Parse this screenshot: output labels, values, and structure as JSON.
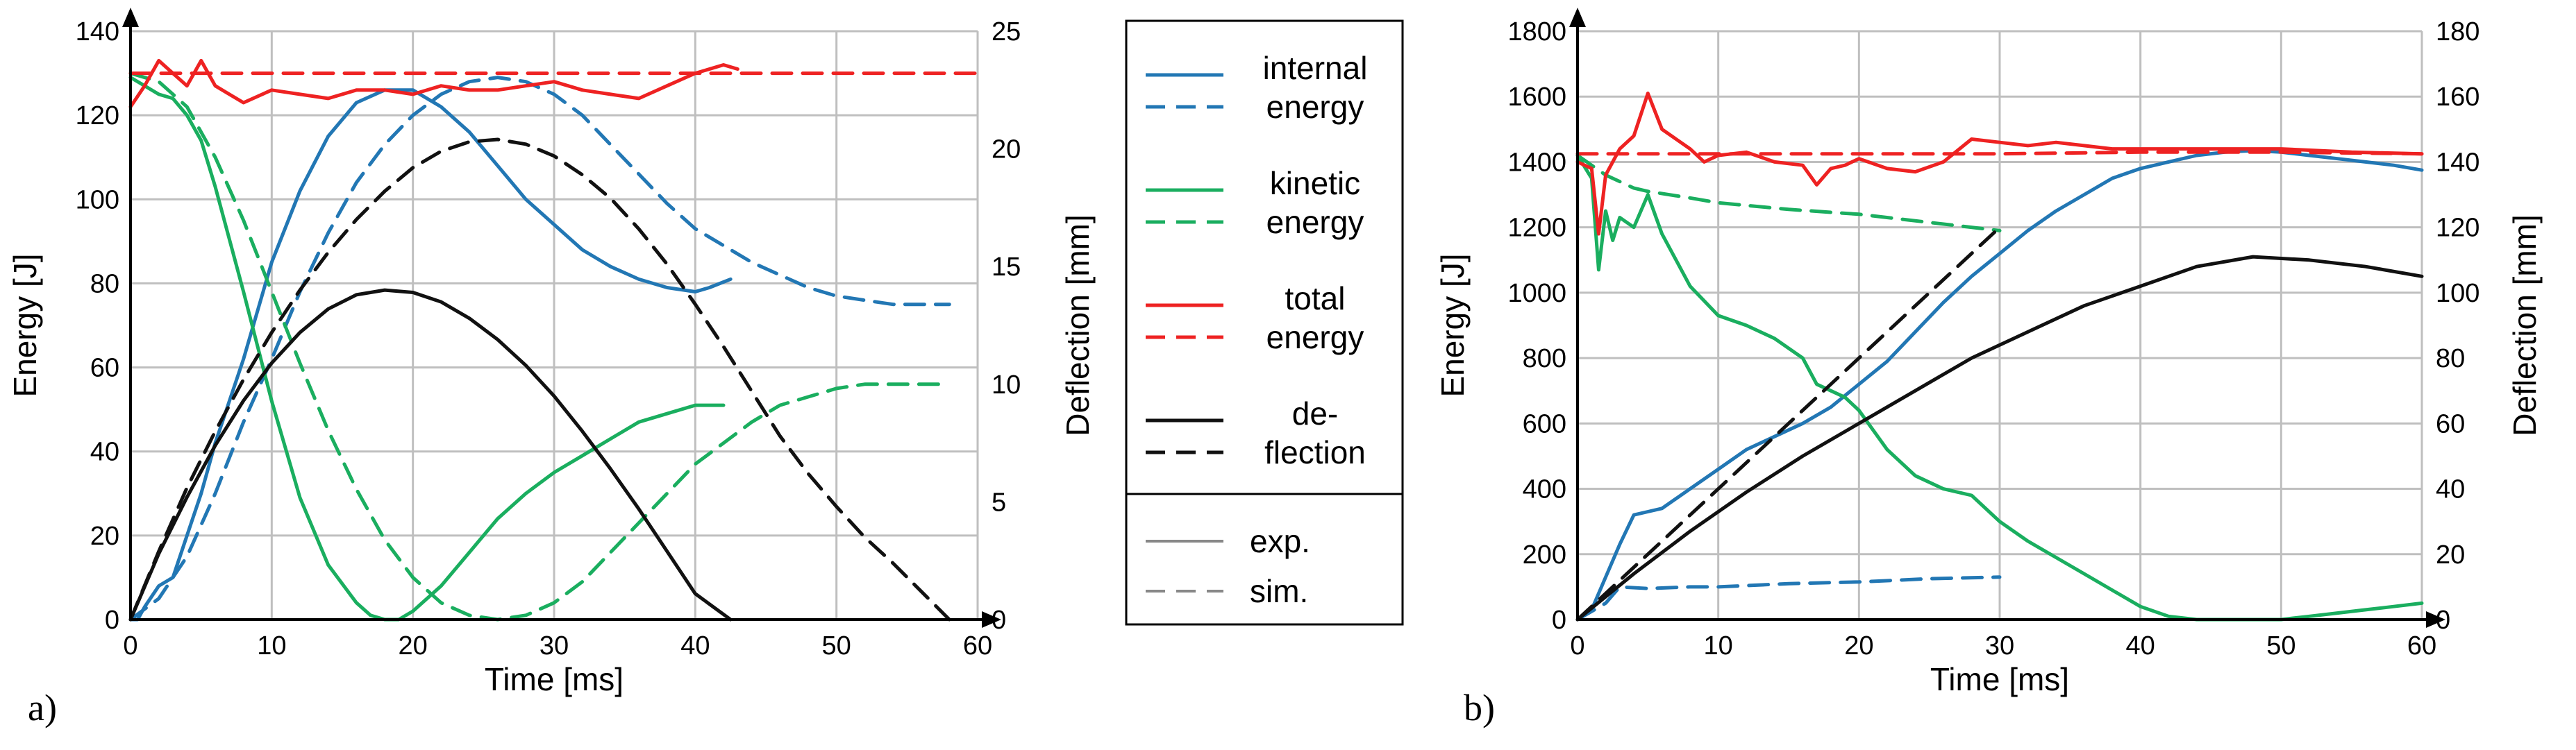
{
  "chart_data": [
    {
      "type": "line",
      "panel_label": "a)",
      "xlabel": "Time [ms]",
      "ylabel": "Energy [J]",
      "y2label": "Deflection [mm]",
      "xlim": [
        0,
        60
      ],
      "ylim": [
        0,
        140
      ],
      "y2lim": [
        0,
        25
      ],
      "xticks": [
        0,
        10,
        20,
        30,
        40,
        50,
        60
      ],
      "yticks": [
        0,
        20,
        40,
        60,
        80,
        100,
        120,
        140
      ],
      "y2ticks": [
        0,
        5,
        10,
        15,
        20,
        25
      ],
      "grid": true,
      "series": [
        {
          "key": "internal_exp",
          "color": "#2277B4",
          "dash": false,
          "axis": "left",
          "x": [
            0,
            0.5,
            1,
            2,
            3,
            4,
            5,
            6,
            8,
            10,
            12,
            14,
            16,
            18,
            20,
            22,
            24,
            26,
            28,
            30,
            32,
            34,
            36,
            38,
            40,
            41,
            42.5
          ],
          "y": [
            0,
            0,
            3,
            8,
            10,
            20,
            30,
            42,
            62,
            85,
            102,
            115,
            123,
            126,
            126,
            122,
            116,
            108,
            100,
            94,
            88,
            84,
            81,
            79,
            78,
            79,
            81
          ]
        },
        {
          "key": "internal_sim",
          "color": "#2277B4",
          "dash": true,
          "axis": "left",
          "x": [
            0,
            2,
            4,
            6,
            8,
            10,
            12,
            14,
            16,
            18,
            20,
            22,
            24,
            26,
            28,
            30,
            32,
            34,
            36,
            38,
            40,
            42,
            44,
            46,
            48,
            50,
            52,
            54,
            56,
            58
          ],
          "y": [
            0,
            5,
            15,
            30,
            47,
            62,
            78,
            92,
            104,
            113,
            120,
            125,
            128,
            129,
            128,
            125,
            120,
            113,
            106,
            99,
            93,
            89,
            85,
            82,
            79,
            77,
            76,
            75,
            75,
            75
          ]
        },
        {
          "key": "kinetic_exp",
          "color": "#1AAE5F",
          "dash": false,
          "axis": "left",
          "x": [
            0,
            1,
            2,
            3,
            4,
            5,
            6,
            8,
            10,
            12,
            14,
            16,
            17,
            18,
            19,
            20,
            22,
            24,
            26,
            28,
            30,
            32,
            34,
            36,
            38,
            40,
            42
          ],
          "y": [
            129,
            127,
            125,
            124,
            120,
            114,
            103,
            78,
            52,
            29,
            13,
            4,
            1,
            0,
            0,
            2,
            8,
            16,
            24,
            30,
            35,
            39,
            43,
            47,
            49,
            51,
            51
          ]
        },
        {
          "key": "kinetic_sim",
          "color": "#1AAE5F",
          "dash": true,
          "axis": "left",
          "x": [
            0,
            2,
            4,
            6,
            8,
            10,
            12,
            14,
            16,
            18,
            20,
            22,
            24,
            26,
            28,
            30,
            32,
            34,
            36,
            38,
            40,
            42,
            44,
            46,
            48,
            50,
            52,
            54,
            56,
            58
          ],
          "y": [
            130,
            128,
            122,
            110,
            95,
            78,
            61,
            45,
            31,
            19,
            10,
            4,
            1,
            0,
            1,
            4,
            9,
            16,
            23,
            30,
            37,
            42,
            47,
            51,
            53,
            55,
            56,
            56,
            56,
            56
          ]
        },
        {
          "key": "total_exp",
          "color": "#EE2222",
          "dash": false,
          "axis": "left",
          "x": [
            0,
            1,
            2,
            3,
            4,
            5,
            6,
            7,
            8,
            10,
            12,
            14,
            16,
            18,
            20,
            22,
            24,
            26,
            28,
            30,
            32,
            34,
            36,
            38,
            40,
            42,
            43
          ],
          "y": [
            122,
            127,
            133,
            130,
            127,
            133,
            127,
            125,
            123,
            126,
            125,
            124,
            126,
            126,
            125,
            127,
            126,
            126,
            127,
            128,
            126,
            125,
            124,
            127,
            130,
            132,
            131
          ]
        },
        {
          "key": "total_sim",
          "color": "#EE2222",
          "dash": true,
          "axis": "left",
          "x": [
            0,
            1,
            2,
            5,
            10,
            20,
            30,
            40,
            50,
            60
          ],
          "y": [
            130,
            130,
            130,
            130,
            130,
            130,
            130,
            130,
            130,
            130
          ]
        },
        {
          "key": "deflection_exp",
          "color": "#111111",
          "dash": false,
          "axis": "right",
          "x": [
            0,
            2,
            4,
            6,
            8,
            10,
            12,
            14,
            16,
            18,
            20,
            22,
            24,
            26,
            28,
            30,
            32,
            34,
            36,
            38,
            40,
            42.5
          ],
          "y": [
            0,
            2.8,
            5.2,
            7.4,
            9.3,
            10.9,
            12.2,
            13.2,
            13.8,
            14.0,
            13.9,
            13.5,
            12.8,
            11.9,
            10.8,
            9.5,
            8.0,
            6.4,
            4.7,
            2.9,
            1.1,
            0
          ]
        },
        {
          "key": "deflection_sim",
          "color": "#111111",
          "dash": true,
          "axis": "right",
          "x": [
            0,
            2,
            4,
            6,
            8,
            10,
            12,
            14,
            16,
            18,
            20,
            22,
            24,
            26,
            28,
            30,
            32,
            34,
            36,
            38,
            40,
            42,
            44,
            46,
            48,
            50,
            52,
            54,
            56,
            58
          ],
          "y": [
            0,
            2.9,
            5.6,
            8.0,
            10.2,
            12.2,
            14.0,
            15.6,
            17.0,
            18.2,
            19.2,
            19.9,
            20.3,
            20.4,
            20.2,
            19.7,
            18.9,
            17.9,
            16.6,
            15.1,
            13.4,
            11.6,
            9.7,
            7.8,
            6.2,
            4.8,
            3.5,
            2.4,
            1.2,
            0
          ]
        }
      ]
    },
    {
      "type": "line",
      "panel_label": "b)",
      "xlabel": "Time [ms]",
      "ylabel": "Energy [J]",
      "y2label": "Deflection [mm]",
      "xlim": [
        0,
        60
      ],
      "ylim": [
        0,
        1800
      ],
      "y2lim": [
        0,
        180
      ],
      "xticks": [
        0,
        10,
        20,
        30,
        40,
        50,
        60
      ],
      "yticks": [
        0,
        200,
        400,
        600,
        800,
        1000,
        1200,
        1400,
        1600,
        1800
      ],
      "y2ticks": [
        0,
        20,
        40,
        60,
        80,
        100,
        120,
        140,
        160,
        180
      ],
      "grid": true,
      "series": [
        {
          "key": "internal_exp",
          "color": "#2277B4",
          "dash": false,
          "axis": "left",
          "x": [
            0,
            1,
            2,
            3,
            4,
            5,
            6,
            8,
            10,
            12,
            14,
            16,
            18,
            20,
            22,
            24,
            26,
            28,
            30,
            32,
            34,
            36,
            38,
            40,
            42,
            44,
            46,
            48,
            50,
            52,
            54,
            56,
            58,
            60
          ],
          "y": [
            0,
            30,
            130,
            230,
            320,
            330,
            340,
            400,
            460,
            520,
            560,
            600,
            650,
            720,
            790,
            880,
            970,
            1050,
            1120,
            1190,
            1250,
            1300,
            1350,
            1380,
            1400,
            1420,
            1430,
            1435,
            1430,
            1420,
            1410,
            1400,
            1390,
            1375
          ]
        },
        {
          "key": "internal_sim",
          "color": "#2277B4",
          "dash": true,
          "axis": "left",
          "x": [
            0,
            2,
            3,
            5,
            8,
            10,
            15,
            20,
            25,
            30
          ],
          "y": [
            0,
            50,
            100,
            95,
            100,
            100,
            110,
            115,
            125,
            130
          ]
        },
        {
          "key": "kinetic_exp",
          "color": "#1AAE5F",
          "dash": false,
          "axis": "left",
          "x": [
            0,
            1,
            1.5,
            2,
            2.5,
            3,
            4,
            5,
            6,
            7,
            8,
            10,
            12,
            14,
            16,
            17,
            18,
            19,
            20,
            22,
            24,
            26,
            28,
            30,
            32,
            34,
            36,
            38,
            40,
            42,
            44,
            46,
            48,
            50,
            52,
            54,
            56,
            58,
            60
          ],
          "y": [
            1420,
            1350,
            1070,
            1250,
            1160,
            1230,
            1200,
            1300,
            1180,
            1100,
            1020,
            930,
            900,
            860,
            800,
            720,
            700,
            680,
            640,
            520,
            440,
            400,
            380,
            300,
            240,
            190,
            140,
            90,
            40,
            10,
            0,
            0,
            0,
            0,
            10,
            20,
            30,
            40,
            50
          ]
        },
        {
          "key": "kinetic_sim",
          "color": "#1AAE5F",
          "dash": true,
          "axis": "left",
          "x": [
            0,
            2,
            4,
            5,
            8,
            10,
            15,
            20,
            25,
            30
          ],
          "y": [
            1420,
            1360,
            1320,
            1310,
            1290,
            1275,
            1255,
            1240,
            1215,
            1190
          ]
        },
        {
          "key": "total_exp",
          "color": "#EE2222",
          "dash": false,
          "axis": "left",
          "x": [
            0,
            1,
            1.5,
            2,
            3,
            4,
            5,
            6,
            7,
            8,
            9,
            10,
            12,
            14,
            16,
            17,
            18,
            19,
            20,
            22,
            24,
            26,
            28,
            30,
            32,
            34,
            36,
            38,
            40,
            45,
            50,
            55,
            60
          ],
          "y": [
            1400,
            1380,
            1180,
            1360,
            1440,
            1480,
            1610,
            1500,
            1470,
            1440,
            1400,
            1420,
            1430,
            1400,
            1390,
            1330,
            1380,
            1390,
            1410,
            1380,
            1370,
            1400,
            1470,
            1460,
            1450,
            1460,
            1450,
            1440,
            1440,
            1440,
            1440,
            1430,
            1425
          ]
        },
        {
          "key": "total_sim",
          "color": "#EE2222",
          "dash": true,
          "axis": "left",
          "x": [
            0,
            10,
            20,
            30,
            40,
            50,
            60
          ],
          "y": [
            1425,
            1425,
            1425,
            1425,
            1430,
            1430,
            1425
          ]
        },
        {
          "key": "deflection_exp",
          "color": "#111111",
          "dash": false,
          "axis": "right",
          "x": [
            0,
            4,
            8,
            12,
            16,
            20,
            24,
            28,
            32,
            36,
            40,
            44,
            48,
            52,
            56,
            60
          ],
          "y": [
            0,
            14,
            27,
            39,
            50,
            60,
            70,
            80,
            88,
            96,
            102,
            108,
            111,
            110,
            108,
            105
          ]
        },
        {
          "key": "deflection_sim",
          "color": "#111111",
          "dash": true,
          "axis": "right",
          "x": [
            0,
            5,
            10,
            15,
            20,
            25,
            30
          ],
          "y": [
            0,
            20,
            40,
            60,
            80,
            100,
            120
          ]
        }
      ]
    }
  ],
  "legend": {
    "entries": [
      {
        "label_lines": [
          "internal",
          "energy"
        ],
        "color": "#2277B4"
      },
      {
        "label_lines": [
          "kinetic",
          "energy"
        ],
        "color": "#1AAE5F"
      },
      {
        "label_lines": [
          "total",
          "energy"
        ],
        "color": "#EE2222"
      },
      {
        "label_lines": [
          "de-",
          "flection"
        ],
        "color": "#111111"
      }
    ],
    "style_entries": [
      {
        "label": "exp.",
        "color": "#888888",
        "dash": false
      },
      {
        "label": "sim.",
        "color": "#888888",
        "dash": true
      }
    ]
  }
}
